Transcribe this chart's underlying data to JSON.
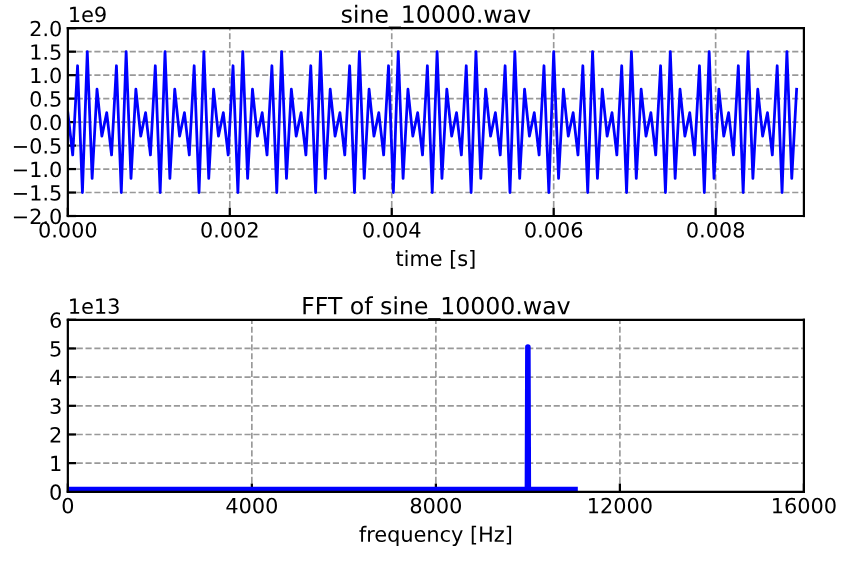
{
  "chart_data": [
    {
      "type": "line",
      "title": "sine_10000.wav",
      "xlabel": "time [s]",
      "annotations": [
        "1e9"
      ],
      "x": [
        0,
        6e-05,
        0.00012,
        0.00018,
        0.00024,
        0.0003,
        0.00036,
        0.00042,
        0.00048,
        0.00054,
        0.0006,
        0.00066,
        0.00072,
        0.00078,
        0.00084,
        0.0009,
        0.00096,
        0.00102,
        0.00108,
        0.00114,
        0.0012,
        0.00126,
        0.00132,
        0.00138,
        0.00144,
        0.0015,
        0.00156,
        0.00162,
        0.00168,
        0.00174,
        0.0018,
        0.00186,
        0.00192,
        0.00198,
        0.00204,
        0.0021,
        0.00216,
        0.00222,
        0.00228,
        0.00234,
        0.0024,
        0.00246,
        0.00252,
        0.00258,
        0.00264,
        0.0027,
        0.00276,
        0.00282,
        0.00288,
        0.00294,
        0.003,
        0.00306,
        0.00312,
        0.00318,
        0.00324,
        0.0033,
        0.00336,
        0.00342,
        0.00348,
        0.00354,
        0.0036,
        0.00366,
        0.00372,
        0.00378,
        0.00384,
        0.0039,
        0.00396,
        0.00402,
        0.00408,
        0.00414,
        0.0042,
        0.00426,
        0.00432,
        0.00438,
        0.00444,
        0.0045,
        0.00456,
        0.00462,
        0.00468,
        0.00474,
        0.0048,
        0.00486,
        0.00492,
        0.00498,
        0.00504,
        0.0051,
        0.00516,
        0.00522,
        0.00528,
        0.00534,
        0.0054,
        0.00546,
        0.00552,
        0.00558,
        0.00564,
        0.0057,
        0.00576,
        0.00582,
        0.00588,
        0.00594,
        0.006,
        0.00606,
        0.00612,
        0.00618,
        0.00624,
        0.0063,
        0.00636,
        0.00642,
        0.00648,
        0.00654,
        0.0066,
        0.00666,
        0.00672,
        0.00678,
        0.00684,
        0.0069,
        0.00696,
        0.00702,
        0.00708,
        0.00714,
        0.0072,
        0.00726,
        0.00732,
        0.00738,
        0.00744,
        0.0075,
        0.00756,
        0.00762,
        0.00768,
        0.00774,
        0.0078,
        0.00786,
        0.00792,
        0.00798,
        0.00804,
        0.0081,
        0.00816,
        0.00822,
        0.00828,
        0.00834,
        0.0084,
        0.00846,
        0.00852,
        0.00858,
        0.00864,
        0.0087,
        0.00876,
        0.00882,
        0.00888,
        0.00894,
        0.009
      ],
      "series": [
        {
          "color": "#0000ff",
          "values": [
            0.2,
            -0.7,
            1.2,
            -1.5,
            1.5,
            -1.2,
            0.7,
            -0.3,
            0.2,
            -0.7,
            1.2,
            -1.5,
            1.5,
            -1.2,
            0.7,
            -0.3,
            0.2,
            -0.7,
            1.2,
            -1.5,
            1.5,
            -1.2,
            0.7,
            -0.3,
            0.2,
            -0.7,
            1.2,
            -1.5,
            1.5,
            -1.2,
            0.7,
            -0.3,
            0.2,
            -0.7,
            1.2,
            -1.5,
            1.5,
            -1.2,
            0.7,
            -0.3,
            0.2,
            -0.7,
            1.2,
            -1.5,
            1.5,
            -1.2,
            0.7,
            -0.3,
            0.2,
            -0.7,
            1.2,
            -1.5,
            1.5,
            -1.2,
            0.7,
            -0.3,
            0.2,
            -0.7,
            1.2,
            -1.5,
            1.5,
            -1.2,
            0.7,
            -0.3,
            0.2,
            -0.7,
            1.2,
            -1.5,
            1.5,
            -1.2,
            0.7,
            -0.3,
            0.2,
            -0.7,
            1.2,
            -1.5,
            1.5,
            -1.2,
            0.7,
            -0.3,
            0.2,
            -0.7,
            1.2,
            -1.5,
            1.5,
            -1.2,
            0.7,
            -0.3,
            0.2,
            -0.7,
            1.2,
            -1.5,
            1.5,
            -1.2,
            0.7,
            -0.3,
            0.2,
            -0.7,
            1.2,
            -1.5,
            1.5,
            -1.2,
            0.7,
            -0.3,
            0.2,
            -0.7,
            1.2,
            -1.5,
            1.5,
            -1.2,
            0.7,
            -0.3,
            0.2,
            -0.7,
            1.2,
            -1.5,
            1.5,
            -1.2,
            0.7,
            -0.3,
            0.2,
            -0.7,
            1.2,
            -1.5,
            1.5,
            -1.2,
            0.7,
            -0.3,
            0.2,
            -0.7,
            1.2,
            -1.5,
            1.5,
            -1.2,
            0.7,
            -0.3,
            0.2,
            -0.7,
            1.2,
            -1.5,
            1.5,
            -1.2,
            0.7,
            -0.3,
            0.2,
            -0.7,
            1.2,
            -1.5,
            1.5,
            -1.2,
            0.7
          ]
        }
      ],
      "xlim": [
        0,
        0.00909
      ],
      "xticks": [
        {
          "value": 0,
          "label": "0.000"
        },
        {
          "value": 0.002,
          "label": "0.002"
        },
        {
          "value": 0.004,
          "label": "0.004"
        },
        {
          "value": 0.006,
          "label": "0.006"
        },
        {
          "value": 0.008,
          "label": "0.008"
        }
      ],
      "ylim": [
        -2,
        2
      ],
      "yticks": [
        {
          "value": -2,
          "label": "−2.0"
        },
        {
          "value": -1.5,
          "label": "−1.5"
        },
        {
          "value": -1,
          "label": "−1.0"
        },
        {
          "value": -0.5,
          "label": "−0.5"
        },
        {
          "value": 0,
          "label": "0.0"
        },
        {
          "value": 0.5,
          "label": "0.5"
        },
        {
          "value": 1,
          "label": "1.0"
        },
        {
          "value": 1.5,
          "label": "1.5"
        },
        {
          "value": 2,
          "label": "2.0"
        }
      ],
      "grid": true,
      "line_style": "solid"
    },
    {
      "type": "line",
      "title": "FFT of sine_10000.wav",
      "xlabel": "frequency [Hz]",
      "annotations": [
        "1e13"
      ],
      "x": [
        0,
        9990,
        10000,
        10010,
        11025
      ],
      "series": [
        {
          "color": "#0000ff",
          "values": [
            0.08,
            0.08,
            5.05,
            0.08,
            0.08
          ]
        }
      ],
      "xlim": [
        0,
        16000
      ],
      "xticks": [
        0,
        4000,
        8000,
        12000,
        16000
      ],
      "ylim": [
        0,
        6
      ],
      "yticks": [
        0,
        1,
        2,
        3,
        4,
        5,
        6
      ],
      "grid": true,
      "line_style": "solid"
    }
  ]
}
